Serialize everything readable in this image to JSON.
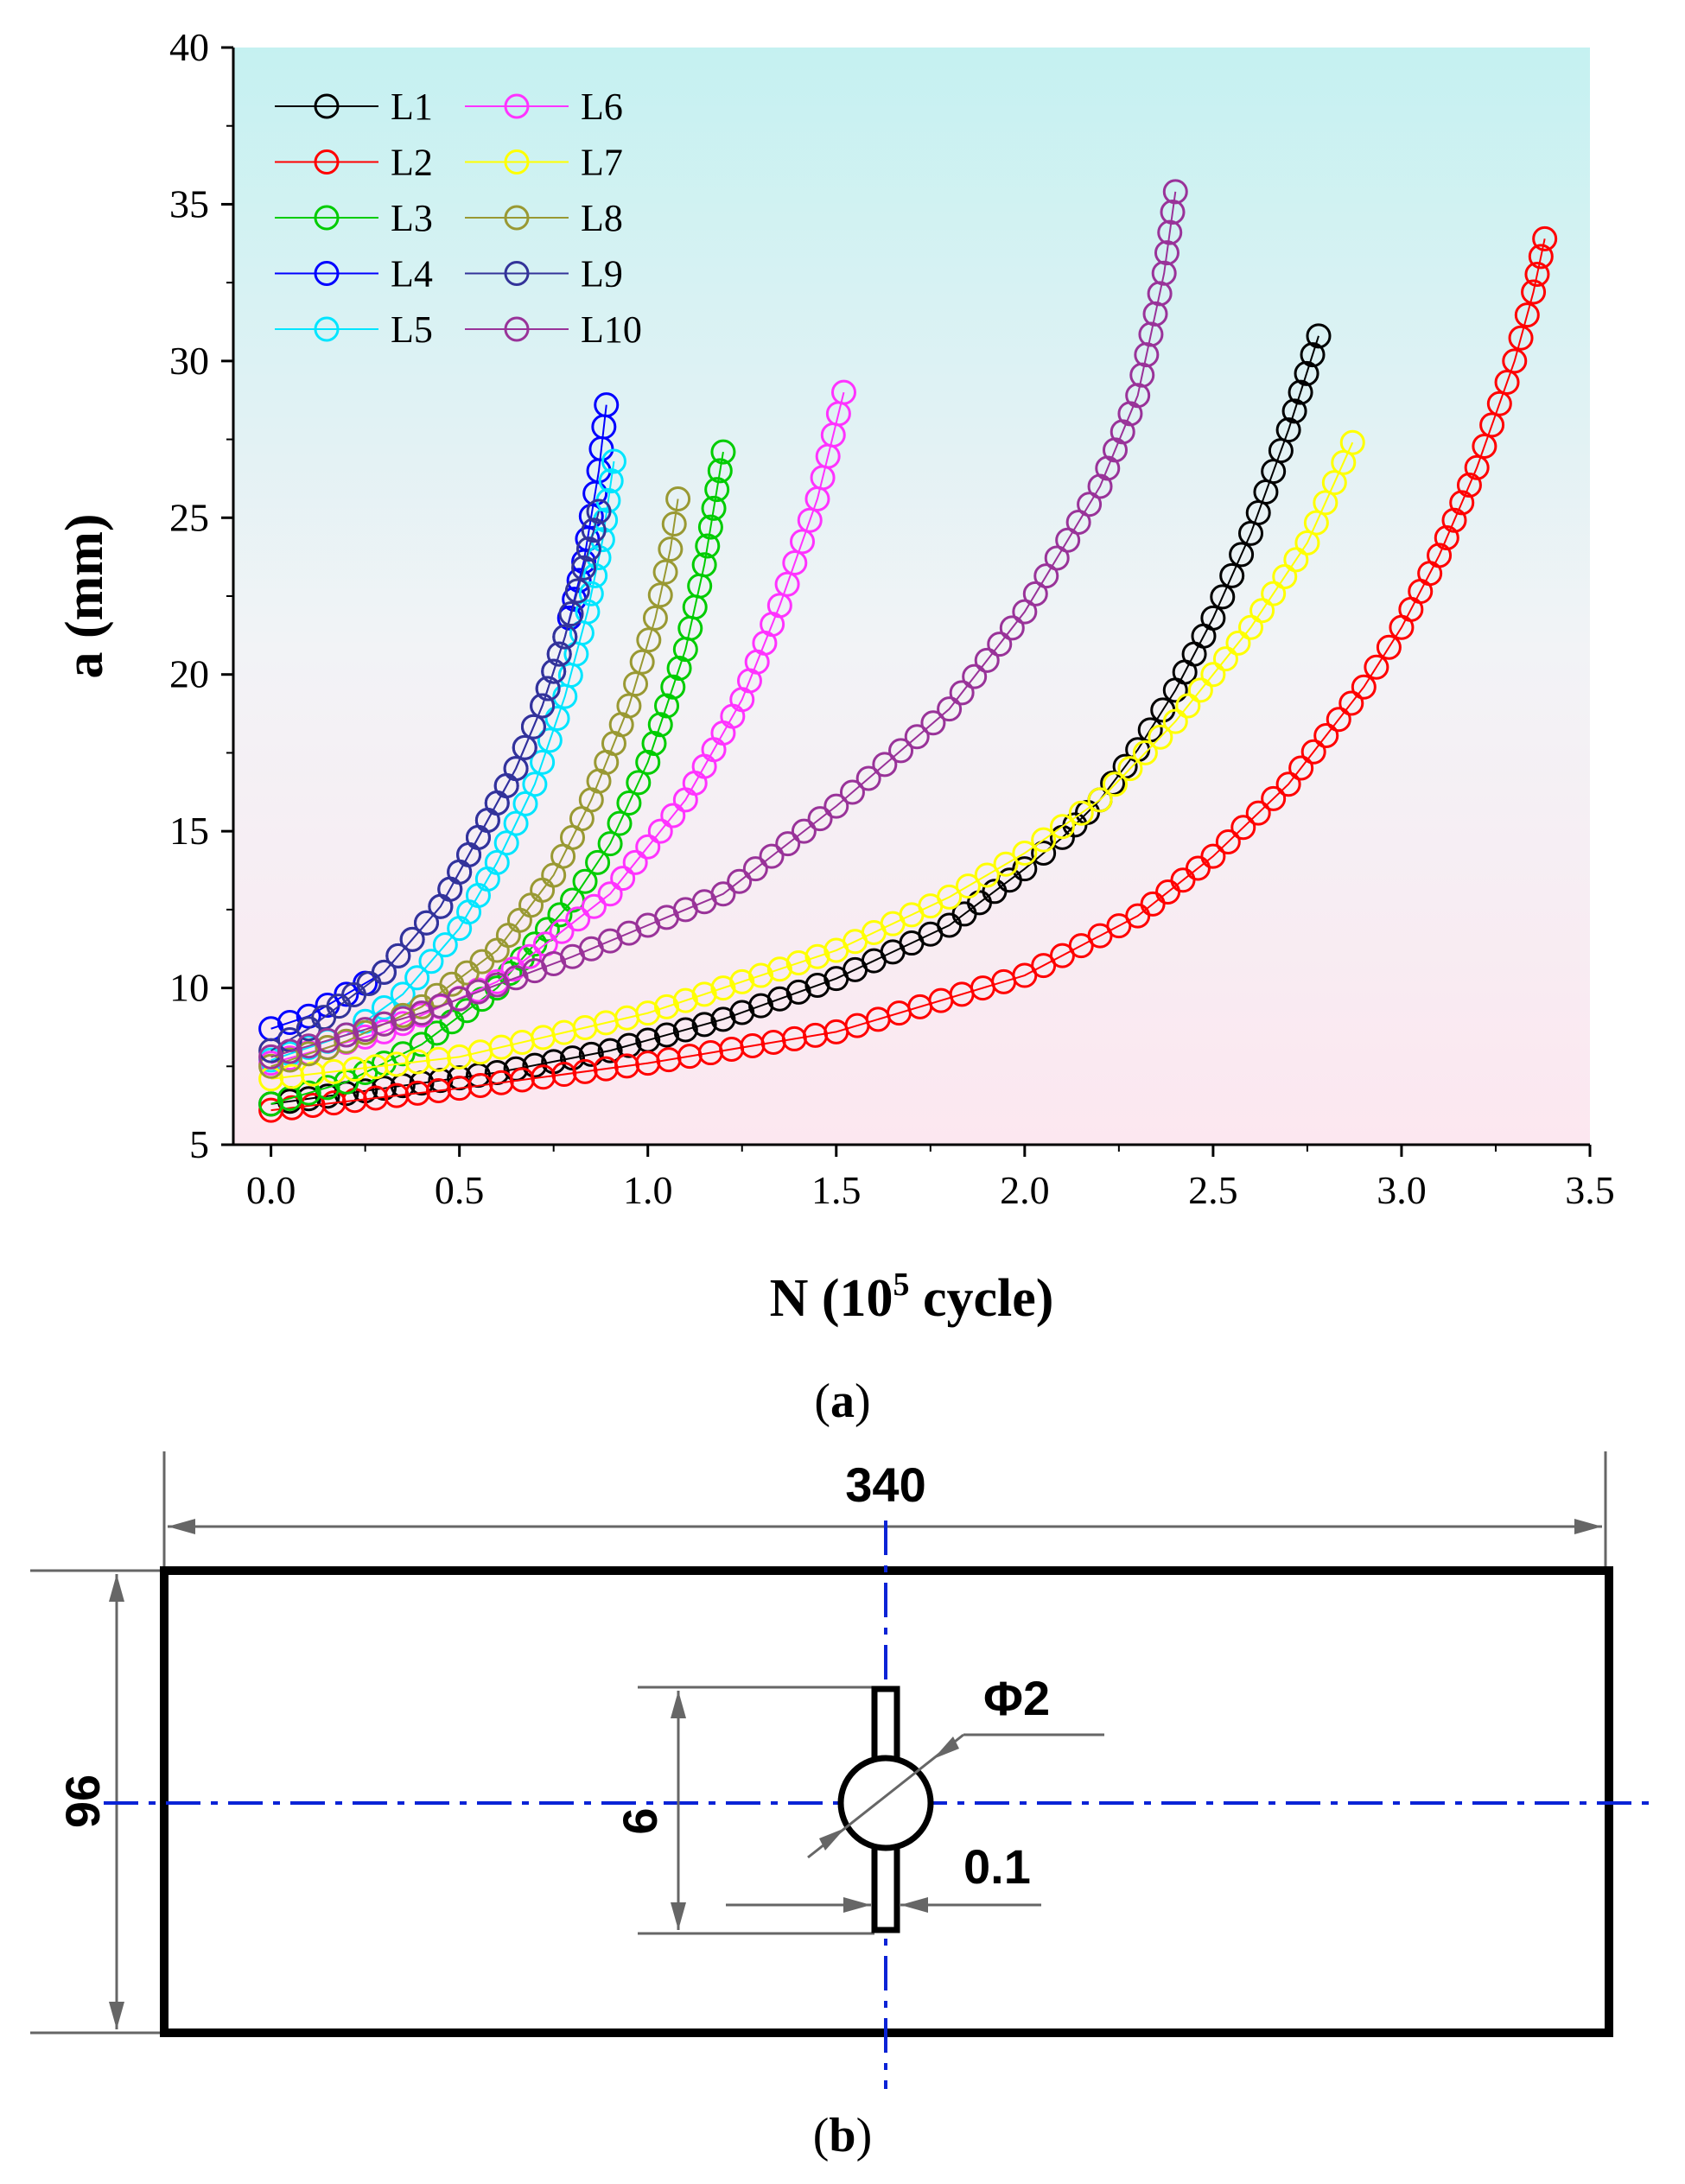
{
  "chart_data": {
    "type": "line",
    "xlabel_main": "N (10",
    "xlabel_sup": "5",
    "xlabel_tail": " cycle)",
    "ylabel": "a (mm)",
    "xlim": [
      -0.1,
      3.5
    ],
    "ylim": [
      5,
      40
    ],
    "xticks": [
      "0.0",
      "0.5",
      "1.0",
      "1.5",
      "2.0",
      "2.5",
      "3.0",
      "3.5"
    ],
    "yticks": [
      "5",
      "10",
      "15",
      "20",
      "25",
      "30",
      "35",
      "40"
    ],
    "xtick_values": [
      0,
      0.5,
      1.0,
      1.5,
      2.0,
      2.5,
      3.0,
      3.5
    ],
    "ytick_values": [
      5,
      10,
      15,
      20,
      25,
      30,
      35,
      40
    ],
    "legend_position": "top-left",
    "series": [
      {
        "name": "L1",
        "color": "#000000",
        "x": [
          0,
          0.3,
          0.6,
          0.9,
          1.2,
          1.5,
          1.8,
          2.0,
          2.1,
          2.2,
          2.3,
          2.4,
          2.5,
          2.6,
          2.7,
          2.78
        ],
        "y": [
          6.3,
          6.8,
          7.3,
          8.0,
          9.0,
          10.3,
          12.0,
          13.8,
          14.8,
          16.0,
          17.6,
          19.5,
          21.8,
          24.5,
          27.8,
          30.8
        ]
      },
      {
        "name": "L2",
        "color": "#ff0000",
        "x": [
          0,
          0.5,
          1.0,
          1.5,
          2.0,
          2.3,
          2.5,
          2.7,
          2.9,
          3.0,
          3.1,
          3.2,
          3.3,
          3.35,
          3.38
        ],
        "y": [
          6.1,
          6.8,
          7.6,
          8.6,
          10.4,
          12.3,
          14.2,
          16.5,
          19.6,
          21.5,
          23.8,
          26.6,
          30.0,
          32.2,
          33.9
        ]
      },
      {
        "name": "L3",
        "color": "#00cc00",
        "x": [
          0,
          0.2,
          0.4,
          0.6,
          0.8,
          0.9,
          1.0,
          1.1,
          1.15,
          1.2
        ],
        "y": [
          6.3,
          7.0,
          8.2,
          10.0,
          12.8,
          14.6,
          17.2,
          20.8,
          23.5,
          27.1
        ]
      },
      {
        "name": "L4",
        "color": "#0000ff",
        "x": [
          0,
          0.1,
          0.3,
          0.45,
          0.55,
          0.65,
          0.72,
          0.78,
          0.83,
          0.87,
          0.89
        ],
        "y": [
          8.7,
          9.1,
          10.5,
          12.6,
          14.8,
          17.0,
          19.0,
          21.2,
          23.6,
          26.5,
          28.6
        ]
      },
      {
        "name": "L5",
        "color": "#00e5ff",
        "x": [
          0,
          0.2,
          0.35,
          0.5,
          0.6,
          0.7,
          0.78,
          0.84,
          0.88,
          0.91
        ],
        "y": [
          7.7,
          8.5,
          9.8,
          11.9,
          14.0,
          16.5,
          19.3,
          22.0,
          24.3,
          26.8
        ]
      },
      {
        "name": "L6",
        "color": "#ff33ff",
        "x": [
          0,
          0.3,
          0.6,
          0.9,
          1.1,
          1.25,
          1.35,
          1.45,
          1.52
        ],
        "y": [
          7.6,
          8.6,
          10.2,
          13.0,
          16.0,
          19.2,
          22.2,
          25.6,
          29.0
        ]
      },
      {
        "name": "L7",
        "color": "#ffff00",
        "x": [
          0,
          0.5,
          1.0,
          1.5,
          1.8,
          2.0,
          2.2,
          2.4,
          2.6,
          2.75,
          2.87
        ],
        "y": [
          7.1,
          7.8,
          9.2,
          11.2,
          12.9,
          14.3,
          16.0,
          18.5,
          21.5,
          24.2,
          27.4
        ]
      },
      {
        "name": "L8",
        "color": "#999933",
        "x": [
          0,
          0.2,
          0.4,
          0.6,
          0.75,
          0.85,
          0.95,
          1.02,
          1.06,
          1.08
        ],
        "y": [
          7.5,
          8.3,
          9.4,
          11.2,
          13.6,
          16.0,
          19.0,
          21.8,
          24.0,
          25.6
        ]
      },
      {
        "name": "L9",
        "color": "#333399",
        "x": [
          0,
          0.1,
          0.3,
          0.45,
          0.55,
          0.65,
          0.72,
          0.78,
          0.83,
          0.87
        ],
        "y": [
          8.0,
          8.7,
          10.5,
          12.6,
          14.8,
          17.0,
          19.0,
          21.2,
          23.4,
          25.2
        ]
      },
      {
        "name": "L10",
        "color": "#993399",
        "x": [
          0,
          0.4,
          0.8,
          1.2,
          1.5,
          1.8,
          2.0,
          2.2,
          2.3,
          2.37,
          2.4
        ],
        "y": [
          7.8,
          9.2,
          11.0,
          13.0,
          15.8,
          18.9,
          22.0,
          26.0,
          28.9,
          32.8,
          35.4
        ]
      }
    ]
  },
  "captions": {
    "a": "a",
    "b": "b",
    "open_paren": "(",
    "close_paren": ")"
  },
  "drawing": {
    "width_label": "340",
    "height_label": "96",
    "slot_length_label": "6",
    "hole_label": "Φ2",
    "slot_width_label": "0.1"
  }
}
